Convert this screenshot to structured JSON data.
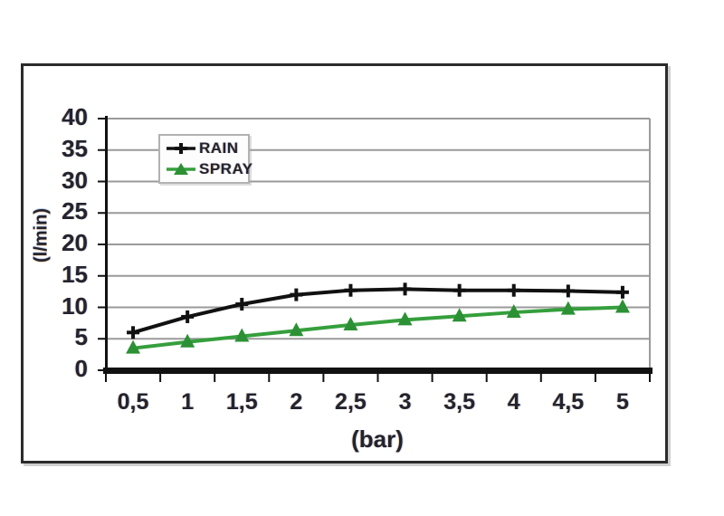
{
  "figure": {
    "background": "#ffffff",
    "frame_border_color": "#2b2b2b"
  },
  "chart_data": {
    "type": "line",
    "title": "",
    "xlabel": "(bar)",
    "ylabel": "(l/min)",
    "x": [
      0.5,
      1,
      1.5,
      2,
      2.5,
      3,
      3.5,
      4,
      4.5,
      5
    ],
    "x_tick_labels": [
      "0,5",
      "1",
      "1,5",
      "2",
      "2,5",
      "3",
      "3,5",
      "4",
      "4,5",
      "5"
    ],
    "y_ticks": [
      0,
      5,
      10,
      15,
      20,
      25,
      30,
      35,
      40
    ],
    "y_tick_labels": [
      "0",
      "5",
      "10",
      "15",
      "20",
      "25",
      "30",
      "35",
      "40"
    ],
    "ylim": [
      0,
      40
    ],
    "grid": "horizontal gray lines at every 5 l/min",
    "gridline_color": "#9a9a9a",
    "axis_color": "#111111",
    "text_color": "#23232e",
    "legend_position": "inside top-left",
    "series": [
      {
        "name": "RAIN",
        "color": "#111111",
        "marker": "plus",
        "marker_color": "#111111",
        "values": [
          6,
          8.5,
          10.5,
          12,
          12.7,
          12.9,
          12.7,
          12.7,
          12.6,
          12.4
        ]
      },
      {
        "name": "SPRAY",
        "color": "#359f3c",
        "marker": "triangle",
        "marker_color": "#2c9134",
        "values": [
          3.5,
          4.5,
          5.4,
          6.3,
          7.2,
          8,
          8.6,
          9.2,
          9.7,
          10
        ]
      }
    ]
  }
}
